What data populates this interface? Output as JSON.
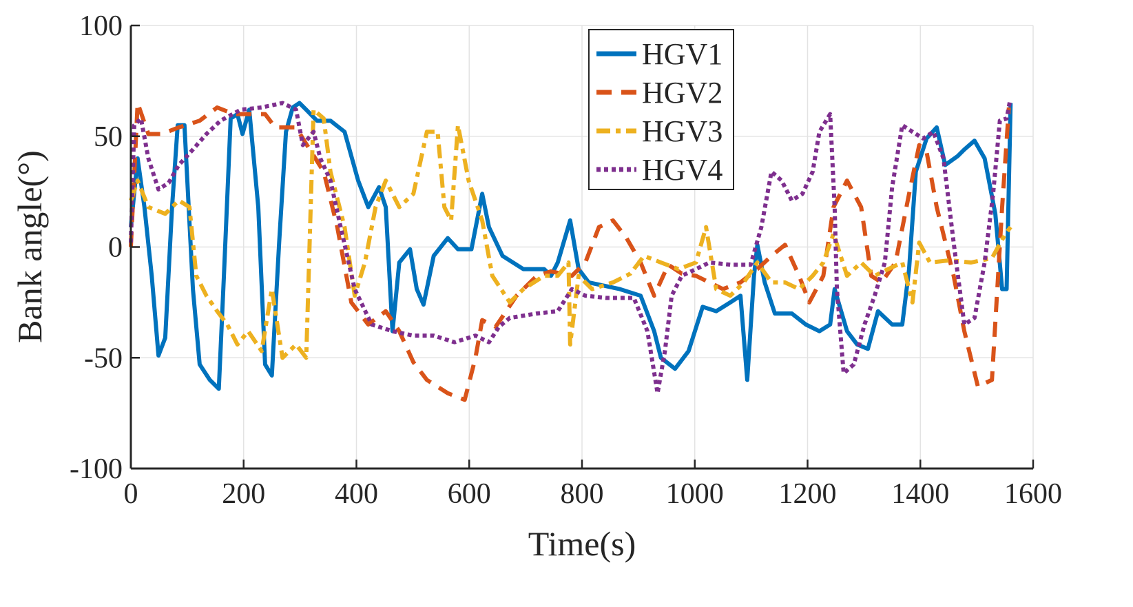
{
  "chart_data": {
    "type": "line",
    "title": "",
    "xlabel": "Time(s)",
    "ylabel": "Bank angle(°)",
    "xlim": [
      0,
      1600
    ],
    "ylim": [
      -100,
      100
    ],
    "xticks": [
      0,
      200,
      400,
      600,
      800,
      1000,
      1200,
      1400,
      1600
    ],
    "yticks": [
      -100,
      -50,
      0,
      50,
      100
    ],
    "xtick_labels": [
      "0",
      "200",
      "400",
      "600",
      "800",
      "1000",
      "1200",
      "1400",
      "1600"
    ],
    "ytick_labels": [
      "-100",
      "-50",
      "0",
      "50",
      "100"
    ],
    "grid": true,
    "legend_position": "top-center",
    "series": [
      {
        "name": "HGV1",
        "color": "#0072BD",
        "style": "solid",
        "x": [
          0,
          12,
          24,
          37,
          49,
          61,
          73,
          83,
          95,
          110,
          122,
          140,
          156,
          165,
          177,
          189,
          198,
          210,
          226,
          238,
          250,
          263,
          275,
          287,
          299,
          311,
          330,
          354,
          379,
          403,
          421,
          440,
          452,
          464,
          476,
          495,
          507,
          519,
          537,
          562,
          580,
          604,
          623,
          635,
          659,
          696,
          733,
          745,
          757,
          779,
          794,
          812,
          867,
          904,
          928,
          940,
          965,
          989,
          1014,
          1038,
          1063,
          1081,
          1093,
          1105,
          1111,
          1124,
          1142,
          1172,
          1197,
          1221,
          1240,
          1248,
          1270,
          1288,
          1307,
          1325,
          1350,
          1368,
          1380,
          1392,
          1411,
          1429,
          1444,
          1466,
          1478,
          1496,
          1514,
          1533,
          1545,
          1553,
          1560
        ],
        "y": [
          9,
          40,
          18,
          -13,
          -49,
          -41,
          18,
          55,
          55,
          -19,
          -53,
          -60,
          -64,
          -13,
          58,
          60,
          51,
          62,
          18,
          -53,
          -58,
          2,
          52,
          63,
          65,
          62,
          57,
          57,
          52,
          30,
          18,
          27,
          18,
          -38,
          -7,
          -1,
          -19,
          -26,
          -4,
          4,
          -1,
          -1,
          24,
          9,
          -4,
          -10,
          -10,
          -13,
          -7,
          12,
          -10,
          -16,
          -19,
          -22,
          -38,
          -50,
          -55,
          -47,
          -27,
          -29,
          -25,
          -22,
          -60,
          -13,
          1,
          -16,
          -30,
          -30,
          -35,
          -38,
          -35,
          -19,
          -38,
          -44,
          -46,
          -29,
          -35,
          -35,
          -10,
          34,
          49,
          54,
          37,
          41,
          44,
          48,
          40,
          15,
          -19,
          -19,
          65
        ]
      },
      {
        "name": "HGV2",
        "color": "#D95319",
        "style": "dashed",
        "x": [
          0,
          12,
          31,
          55,
          85,
          122,
          153,
          183,
          238,
          256,
          293,
          305,
          342,
          366,
          391,
          421,
          452,
          476,
          501,
          525,
          562,
          592,
          611,
          623,
          647,
          684,
          720,
          745,
          782,
          806,
          830,
          855,
          879,
          904,
          928,
          953,
          977,
          1002,
          1026,
          1050,
          1081,
          1111,
          1136,
          1160,
          1185,
          1203,
          1228,
          1246,
          1270,
          1295,
          1313,
          1331,
          1356,
          1380,
          1398,
          1411,
          1429,
          1459,
          1478,
          1502,
          1527,
          1545,
          1557
        ],
        "y": [
          0,
          65,
          51,
          51,
          54,
          57,
          63,
          60,
          60,
          54,
          54,
          49,
          34,
          9,
          -25,
          -35,
          -29,
          -38,
          -52,
          -60,
          -66,
          -69,
          -50,
          -33,
          -36,
          -22,
          -13,
          -11,
          -13,
          -7,
          9,
          12,
          4,
          -7,
          -22,
          -8,
          -12,
          -13,
          -16,
          -19,
          -16,
          -10,
          -4,
          1,
          -13,
          -25,
          -13,
          18,
          30,
          18,
          -13,
          -16,
          -7,
          24,
          46,
          43,
          18,
          -13,
          -38,
          -63,
          -60,
          18,
          63
        ]
      },
      {
        "name": "HGV3",
        "color": "#EDB120",
        "style": "dash-dot",
        "x": [
          0,
          12,
          31,
          61,
          85,
          104,
          116,
          134,
          153,
          171,
          189,
          208,
          232,
          250,
          269,
          293,
          311,
          324,
          342,
          354,
          379,
          397,
          415,
          434,
          452,
          476,
          501,
          525,
          544,
          556,
          568,
          580,
          599,
          623,
          641,
          672,
          696,
          733,
          757,
          776,
          779,
          794,
          818,
          855,
          886,
          910,
          940,
          971,
          1002,
          1020,
          1038,
          1063,
          1087,
          1111,
          1136,
          1160,
          1185,
          1209,
          1228,
          1246,
          1270,
          1295,
          1319,
          1343,
          1368,
          1386,
          1398,
          1417,
          1453,
          1490,
          1527,
          1551,
          1560
        ],
        "y": [
          21,
          30,
          18,
          15,
          21,
          18,
          -13,
          -22,
          -29,
          -35,
          -44,
          -38,
          -47,
          -19,
          -50,
          -44,
          -50,
          62,
          58,
          34,
          9,
          -22,
          -7,
          18,
          30,
          18,
          24,
          52,
          52,
          18,
          12,
          55,
          30,
          12,
          -13,
          -25,
          -19,
          -13,
          -13,
          -7,
          -44,
          -13,
          -19,
          -16,
          -12,
          -4,
          -7,
          -10,
          -7,
          9,
          -19,
          -22,
          -16,
          -7,
          -16,
          -16,
          -19,
          -13,
          -7,
          6,
          -13,
          -7,
          -13,
          -10,
          -7,
          -25,
          2,
          -7,
          -6,
          -7,
          -5,
          6,
          9
        ]
      },
      {
        "name": "HGV4",
        "color": "#7E2F8E",
        "style": "dotted",
        "x": [
          0,
          6,
          18,
          31,
          49,
          67,
          85,
          110,
          134,
          159,
          195,
          232,
          269,
          293,
          305,
          324,
          336,
          354,
          372,
          397,
          427,
          464,
          501,
          537,
          574,
          611,
          635,
          653,
          672,
          720,
          757,
          782,
          806,
          843,
          892,
          916,
          934,
          947,
          959,
          977,
          1002,
          1026,
          1063,
          1099,
          1118,
          1136,
          1154,
          1172,
          1191,
          1209,
          1221,
          1240,
          1248,
          1252,
          1264,
          1282,
          1301,
          1319,
          1337,
          1350,
          1368,
          1386,
          1405,
          1423,
          1441,
          1459,
          1478,
          1496,
          1514,
          1529,
          1541,
          1553,
          1559
        ],
        "y": [
          2,
          55,
          58,
          40,
          26,
          29,
          37,
          44,
          51,
          57,
          62,
          63,
          65,
          62,
          46,
          52,
          40,
          30,
          9,
          -19,
          -35,
          -38,
          -40,
          -40,
          -43,
          -40,
          -43,
          -36,
          -32,
          -30,
          -29,
          -19,
          -22,
          -23,
          -23,
          -38,
          -66,
          -47,
          -22,
          -13,
          -10,
          -7,
          -8,
          -8,
          9,
          34,
          30,
          21,
          24,
          34,
          52,
          60,
          18,
          -19,
          -57,
          -53,
          -35,
          -22,
          -7,
          27,
          55,
          52,
          49,
          52,
          40,
          2,
          -35,
          -32,
          -7,
          24,
          57,
          58,
          66
        ]
      }
    ]
  }
}
